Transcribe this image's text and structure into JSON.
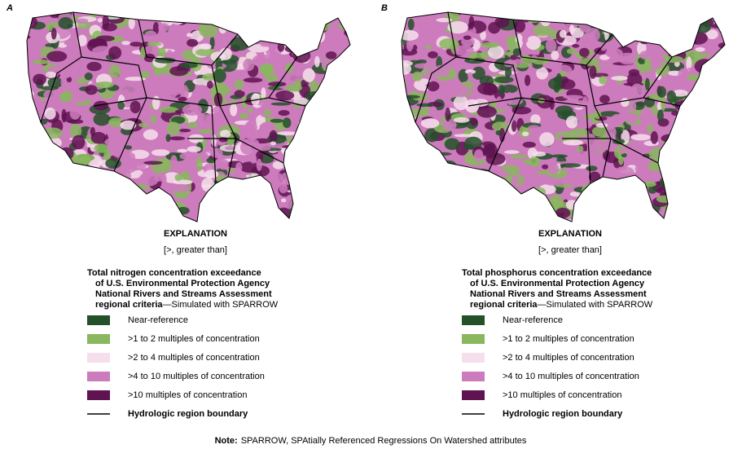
{
  "panels": [
    {
      "label": "A",
      "explanation": {
        "title": "EXPLANATION",
        "subtitle": "[>, greater than]",
        "heading_lines": [
          "Total nitrogen concentration exceedance",
          "of U.S. Environmental Protection Agency",
          "National Rivers and Streams Assessment",
          "regional criteria"
        ],
        "heading_suffix": "—Simulated with SPARROW",
        "items": [
          {
            "label": "Near-reference",
            "color": "#24502a"
          },
          {
            "label": ">1 to 2 multiples of concentration",
            "color": "#88b75e"
          },
          {
            "label": ">2 to 4 multiples of concentration",
            "color": "#f6dfec"
          },
          {
            "label": ">4 to 10 multiples of concentration",
            "color": "#cc7bbd"
          },
          {
            "label": ">10 multiples of concentration",
            "color": "#5f1351"
          }
        ],
        "boundary": {
          "label": "Hydrologic region boundary",
          "color": "#000000"
        }
      }
    },
    {
      "label": "B",
      "explanation": {
        "title": "EXPLANATION",
        "subtitle": "[>, greater than]",
        "heading_lines": [
          "Total phosphorus concentration exceedance",
          "of U.S. Environmental Protection Agency",
          "National Rivers and Streams Assessment",
          "regional criteria"
        ],
        "heading_suffix": "—Simulated with SPARROW",
        "items": [
          {
            "label": "Near-reference",
            "color": "#24502a"
          },
          {
            "label": ">1 to 2 multiples of concentration",
            "color": "#88b75e"
          },
          {
            "label": ">2 to 4 multiples of concentration",
            "color": "#f6dfec"
          },
          {
            "label": ">4 to 10 multiples of concentration",
            "color": "#cc7bbd"
          },
          {
            "label": ">10 multiples of concentration",
            "color": "#5f1351"
          }
        ],
        "boundary": {
          "label": "Hydrologic region boundary",
          "color": "#000000"
        }
      }
    }
  ],
  "note": {
    "label": "Note:",
    "text": "SPARROW, SPAtially Referenced Regressions On Watershed attributes"
  }
}
